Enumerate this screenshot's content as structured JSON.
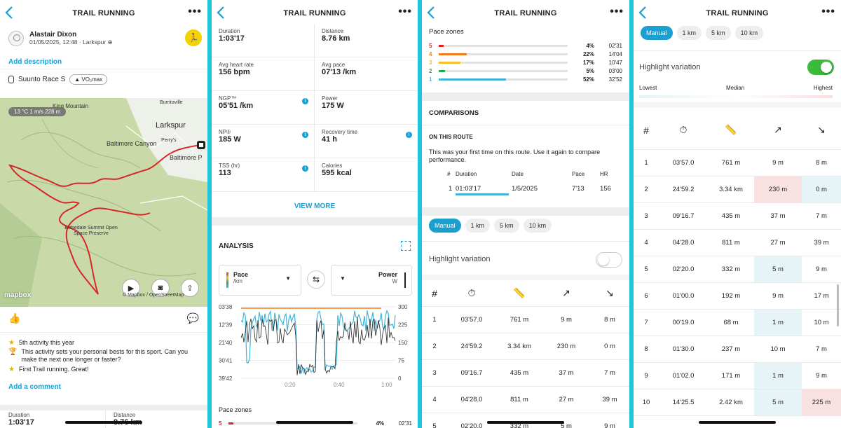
{
  "header": {
    "title": "TRAIL RUNNING"
  },
  "p1": {
    "user": {
      "name": "Alastair Dixon",
      "meta": "01/05/2025, 12:48 · Larkspur ⊕"
    },
    "add_description": "Add description",
    "device": {
      "name": "Suunto Race S",
      "badge": "VO₂max"
    },
    "map": {
      "weather": "13 °C  1 m/s  228 m",
      "labels": [
        "Burritoville",
        "King Mountain",
        "Larkspur",
        "Baltimore Canyon",
        "Perry's",
        "Baltimore P",
        "Blithedale Summit Open Space Preserve"
      ],
      "mapbox": "mapbox",
      "attribution": "© Mapbox / OpenStreetMap"
    },
    "achievements": [
      {
        "icon": "star-icon",
        "text": "5th activity this year"
      },
      {
        "icon": "trophy-icon",
        "text": "This activity sets your personal bests for this sport. Can you make the next one longer or faster?"
      },
      {
        "icon": "star-icon",
        "text": "First Trail running. Great!"
      }
    ],
    "add_comment": "Add a comment",
    "bottom": {
      "duration_label": "Duration",
      "duration": "1:03'17",
      "distance_label": "Distance",
      "distance": "8.76 km"
    }
  },
  "p2": {
    "stats": [
      {
        "label": "Duration",
        "value": "1:03'17",
        "info": false
      },
      {
        "label": "Distance",
        "value": "8.76 km",
        "info": false
      },
      {
        "label": "Avg heart rate",
        "value": "156 bpm",
        "info": false
      },
      {
        "label": "Avg pace",
        "value": "07'13 /km",
        "info": false
      },
      {
        "label": "NGP™",
        "value": "05'51 /km",
        "info": true
      },
      {
        "label": "Power",
        "value": "175 W",
        "info": false
      },
      {
        "label": "NP®",
        "value": "185 W",
        "info": true
      },
      {
        "label": "Recovery time",
        "value": "41 h",
        "info": true
      },
      {
        "label": "TSS (hr)",
        "value": "113",
        "info": true
      },
      {
        "label": "Calories",
        "value": "595 kcal",
        "info": false
      }
    ],
    "view_more": "VIEW MORE",
    "analysis": "ANALYSIS",
    "left_select": {
      "title": "Pace",
      "unit": "/km"
    },
    "right_select": {
      "title": "Power",
      "unit": "W"
    },
    "chart_data": {
      "type": "line",
      "x_ticks": [
        "0:20",
        "0:40",
        "1:00"
      ],
      "y_left_ticks": [
        "03'38",
        "12'39",
        "21'40",
        "30'41",
        "39'42"
      ],
      "y_right_ticks": [
        "300",
        "225",
        "150",
        "75",
        "0"
      ],
      "series": [
        {
          "name": "Pace"
        },
        {
          "name": "Power"
        }
      ]
    },
    "pace_zones_label": "Pace zones",
    "pz_peek": {
      "zone": "5",
      "pct": "4%",
      "time": "02'31"
    }
  },
  "p3": {
    "pace_zones_label": "Pace zones",
    "zones": [
      {
        "zone": "5",
        "pct": "4%",
        "time": "02'31",
        "color": "#d8232a",
        "fill": 4
      },
      {
        "zone": "4",
        "pct": "22%",
        "time": "14'04",
        "color": "#f07c1b",
        "fill": 22
      },
      {
        "zone": "3",
        "pct": "17%",
        "time": "10'47",
        "color": "#f2c12e",
        "fill": 17
      },
      {
        "zone": "2",
        "pct": "5%",
        "time": "03'00",
        "color": "#2ba84a",
        "fill": 5
      },
      {
        "zone": "1",
        "pct": "52%",
        "time": "32'52",
        "color": "#3fb6d8",
        "fill": 52
      }
    ],
    "comparisons": "COMPARISONS",
    "on_route": "ON THIS ROUTE",
    "route_text": "This was your first time on this route. Use it again to compare performance.",
    "cmp_headers": [
      "#",
      "Duration",
      "Date",
      "Pace",
      "HR"
    ],
    "cmp_row": [
      "1",
      "01:03'17",
      "1/5/2025",
      "7'13",
      "156"
    ],
    "filters": [
      "Manual",
      "1 km",
      "5 km",
      "10 km"
    ],
    "highlight": "Highlight variation"
  },
  "p4": {
    "filters": [
      "Manual",
      "1 km",
      "5 km",
      "10 km"
    ],
    "highlight": "Highlight variation",
    "legend": {
      "lowest": "Lowest",
      "median": "Median",
      "highest": "Highest"
    },
    "lap_hash": "#"
  },
  "laps": [
    {
      "n": "1",
      "dur": "03'57.0",
      "dist": "761 m",
      "up": "9 m",
      "down": "8 m",
      "hu": "",
      "hd": ""
    },
    {
      "n": "2",
      "dur": "24'59.2",
      "dist": "3.34 km",
      "up": "230 m",
      "down": "0 m",
      "hu": "red",
      "hd": "blue"
    },
    {
      "n": "3",
      "dur": "09'16.7",
      "dist": "435 m",
      "up": "37 m",
      "down": "7 m",
      "hu": "",
      "hd": ""
    },
    {
      "n": "4",
      "dur": "04'28.0",
      "dist": "811 m",
      "up": "27 m",
      "down": "39 m",
      "hu": "",
      "hd": ""
    },
    {
      "n": "5",
      "dur": "02'20.0",
      "dist": "332 m",
      "up": "5 m",
      "down": "9 m",
      "hu": "blue",
      "hd": ""
    },
    {
      "n": "6",
      "dur": "01'00.0",
      "dist": "192 m",
      "up": "9 m",
      "down": "17 m",
      "hu": "",
      "hd": ""
    },
    {
      "n": "7",
      "dur": "00'19.0",
      "dist": "68 m",
      "up": "1 m",
      "down": "10 m",
      "hu": "blue",
      "hd": ""
    },
    {
      "n": "8",
      "dur": "01'30.0",
      "dist": "237 m",
      "up": "10 m",
      "down": "7 m",
      "hu": "",
      "hd": ""
    },
    {
      "n": "9",
      "dur": "01'02.0",
      "dist": "171 m",
      "up": "1 m",
      "down": "9 m",
      "hu": "blue",
      "hd": ""
    },
    {
      "n": "10",
      "dur": "14'25.5",
      "dist": "2.42 km",
      "up": "5 m",
      "down": "225 m",
      "hu": "blue",
      "hd": "red"
    }
  ]
}
